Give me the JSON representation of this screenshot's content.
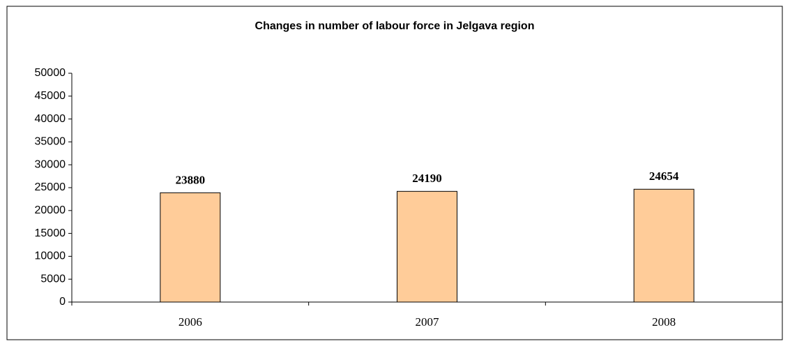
{
  "chart_data": {
    "type": "bar",
    "title": "Changes in number of labour force in Jelgava region",
    "categories": [
      "2006",
      "2007",
      "2008"
    ],
    "values": [
      23880,
      24190,
      24654
    ],
    "color": "#ffcc99",
    "ylim": [
      0,
      50000
    ],
    "yticks": [
      0,
      5000,
      10000,
      15000,
      20000,
      25000,
      30000,
      35000,
      40000,
      45000,
      50000
    ]
  }
}
